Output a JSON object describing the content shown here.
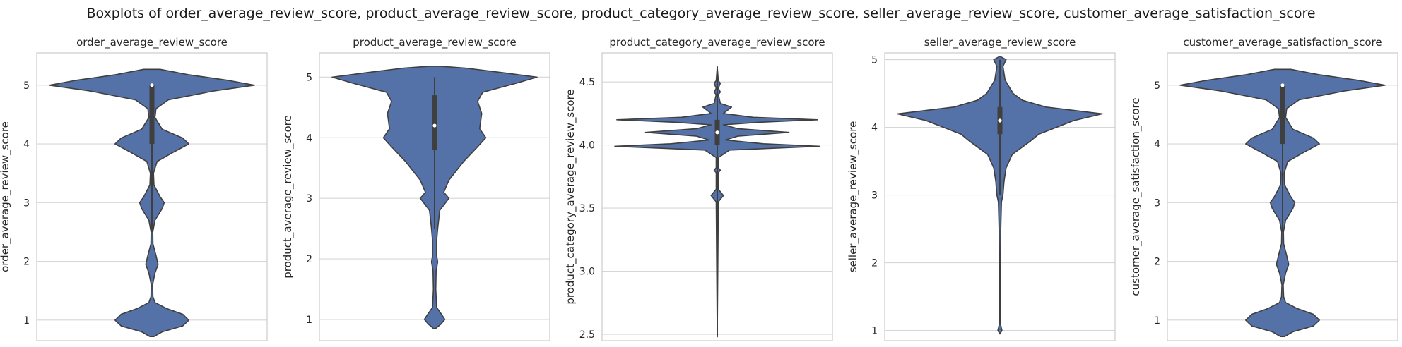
{
  "figure": {
    "title": "Boxplots of order_average_review_score, product_average_review_score, product_category_average_review_score, seller_average_review_score, customer_average_satisfaction_score"
  },
  "colors": {
    "violin_fill": "#5471a8",
    "outline": "#3f3f3f",
    "grid": "#d6d6d6",
    "frame": "#cccccc"
  },
  "chart_data": [
    {
      "type": "violin",
      "title": "order_average_review_score",
      "ylabel": "order_average_review_score",
      "ylim": [
        0.65,
        5.55
      ],
      "yticks": [
        1,
        2,
        3,
        4,
        5
      ],
      "ytick_labels": [
        "1",
        "2",
        "3",
        "4",
        "5"
      ],
      "grid": true,
      "box": {
        "q1": 4.0,
        "median": 5.0,
        "q3": 5.0,
        "whisker_low": 2.5,
        "whisker_high": 5.0
      },
      "density_profile": [
        [
          0.72,
          0.02
        ],
        [
          0.8,
          0.1
        ],
        [
          0.9,
          0.3
        ],
        [
          1.0,
          0.36
        ],
        [
          1.1,
          0.3
        ],
        [
          1.2,
          0.14
        ],
        [
          1.3,
          0.03
        ],
        [
          1.4,
          0.01
        ],
        [
          1.6,
          0.006
        ],
        [
          1.8,
          0.03
        ],
        [
          1.95,
          0.06
        ],
        [
          2.1,
          0.04
        ],
        [
          2.3,
          0.01
        ],
        [
          2.5,
          0.008
        ],
        [
          2.7,
          0.03
        ],
        [
          2.9,
          0.1
        ],
        [
          3.0,
          0.12
        ],
        [
          3.1,
          0.08
        ],
        [
          3.3,
          0.02
        ],
        [
          3.5,
          0.015
        ],
        [
          3.7,
          0.05
        ],
        [
          3.85,
          0.2
        ],
        [
          4.0,
          0.36
        ],
        [
          4.1,
          0.3
        ],
        [
          4.25,
          0.1
        ],
        [
          4.45,
          0.03
        ],
        [
          4.6,
          0.04
        ],
        [
          4.75,
          0.16
        ],
        [
          4.9,
          0.6
        ],
        [
          5.0,
          1.0
        ],
        [
          5.08,
          0.75
        ],
        [
          5.18,
          0.35
        ],
        [
          5.27,
          0.08
        ]
      ]
    },
    {
      "type": "violin",
      "title": "product_average_review_score",
      "ylabel": "product_average_review_score",
      "ylim": [
        0.65,
        5.4
      ],
      "yticks": [
        1,
        2,
        3,
        4,
        5
      ],
      "ytick_labels": [
        "1",
        "2",
        "3",
        "4",
        "5"
      ],
      "grid": true,
      "box": {
        "q1": 3.8,
        "median": 4.2,
        "q3": 4.7,
        "whisker_low": 2.5,
        "whisker_high": 5.0
      },
      "density_profile": [
        [
          0.85,
          0.01
        ],
        [
          0.92,
          0.06
        ],
        [
          1.0,
          0.1
        ],
        [
          1.08,
          0.07
        ],
        [
          1.2,
          0.02
        ],
        [
          1.5,
          0.012
        ],
        [
          1.8,
          0.015
        ],
        [
          1.95,
          0.03
        ],
        [
          2.05,
          0.02
        ],
        [
          2.3,
          0.02
        ],
        [
          2.5,
          0.03
        ],
        [
          2.8,
          0.05
        ],
        [
          3.0,
          0.14
        ],
        [
          3.1,
          0.09
        ],
        [
          3.3,
          0.14
        ],
        [
          3.6,
          0.28
        ],
        [
          3.85,
          0.42
        ],
        [
          4.0,
          0.5
        ],
        [
          4.15,
          0.44
        ],
        [
          4.4,
          0.46
        ],
        [
          4.6,
          0.42
        ],
        [
          4.75,
          0.47
        ],
        [
          4.9,
          0.8
        ],
        [
          5.0,
          1.0
        ],
        [
          5.07,
          0.68
        ],
        [
          5.15,
          0.3
        ],
        [
          5.18,
          0.05
        ]
      ]
    },
    {
      "type": "violin",
      "title": "product_category_average_review_score",
      "ylabel": "product_category_average_review_score",
      "ylim": [
        2.45,
        4.73
      ],
      "yticks": [
        2.5,
        3.0,
        3.5,
        4.0,
        4.5
      ],
      "ytick_labels": [
        "2.5",
        "3.0",
        "3.5",
        "4.0",
        "4.5"
      ],
      "grid": true,
      "box": {
        "q1": 4.0,
        "median": 4.1,
        "q3": 4.2,
        "whisker_low": 2.48,
        "whisker_high": 4.62
      },
      "density_profile": [
        [
          2.48,
          0.0
        ],
        [
          3.55,
          0.01
        ],
        [
          3.6,
          0.06
        ],
        [
          3.65,
          0.01
        ],
        [
          3.78,
          0.01
        ],
        [
          3.8,
          0.03
        ],
        [
          3.82,
          0.01
        ],
        [
          3.9,
          0.01
        ],
        [
          3.96,
          0.12
        ],
        [
          3.99,
          1.0
        ],
        [
          4.01,
          0.45
        ],
        [
          4.04,
          0.08
        ],
        [
          4.07,
          0.2
        ],
        [
          4.1,
          0.7
        ],
        [
          4.13,
          0.2
        ],
        [
          4.16,
          0.06
        ],
        [
          4.18,
          0.4
        ],
        [
          4.2,
          0.98
        ],
        [
          4.22,
          0.35
        ],
        [
          4.25,
          0.06
        ],
        [
          4.3,
          0.14
        ],
        [
          4.33,
          0.03
        ],
        [
          4.4,
          0.01
        ],
        [
          4.42,
          0.03
        ],
        [
          4.45,
          0.01
        ],
        [
          4.49,
          0.03
        ],
        [
          4.51,
          0.01
        ],
        [
          4.62,
          0.0
        ]
      ]
    },
    {
      "type": "violin",
      "title": "seller_average_review_score",
      "ylabel": "seller_average_review_score",
      "ylim": [
        0.85,
        5.1
      ],
      "yticks": [
        1,
        2,
        3,
        4,
        5
      ],
      "ytick_labels": [
        "1",
        "2",
        "3",
        "4",
        "5"
      ],
      "grid": true,
      "box": {
        "q1": 3.9,
        "median": 4.1,
        "q3": 4.3,
        "whisker_low": 3.0,
        "whisker_high": 5.0
      },
      "density_profile": [
        [
          0.95,
          0.0
        ],
        [
          1.0,
          0.02
        ],
        [
          1.1,
          0.005
        ],
        [
          2.0,
          0.005
        ],
        [
          2.5,
          0.008
        ],
        [
          2.7,
          0.012
        ],
        [
          2.9,
          0.015
        ],
        [
          3.0,
          0.03
        ],
        [
          3.2,
          0.04
        ],
        [
          3.4,
          0.06
        ],
        [
          3.6,
          0.12
        ],
        [
          3.8,
          0.3
        ],
        [
          3.9,
          0.38
        ],
        [
          4.0,
          0.55
        ],
        [
          4.1,
          0.72
        ],
        [
          4.2,
          1.0
        ],
        [
          4.3,
          0.45
        ],
        [
          4.4,
          0.22
        ],
        [
          4.5,
          0.13
        ],
        [
          4.6,
          0.09
        ],
        [
          4.7,
          0.05
        ],
        [
          4.8,
          0.04
        ],
        [
          4.9,
          0.03
        ],
        [
          5.0,
          0.06
        ],
        [
          5.05,
          0.0
        ]
      ]
    },
    {
      "type": "violin",
      "title": "customer_average_satisfaction_score",
      "ylabel": "customer_average_satisfaction_score",
      "ylim": [
        0.65,
        5.55
      ],
      "yticks": [
        1,
        2,
        3,
        4,
        5
      ],
      "ytick_labels": [
        "1",
        "2",
        "3",
        "4",
        "5"
      ],
      "grid": true,
      "box": {
        "q1": 4.0,
        "median": 5.0,
        "q3": 5.0,
        "whisker_low": 2.5,
        "whisker_high": 5.0
      },
      "density_profile": [
        [
          0.72,
          0.02
        ],
        [
          0.8,
          0.1
        ],
        [
          0.9,
          0.3
        ],
        [
          1.0,
          0.36
        ],
        [
          1.1,
          0.3
        ],
        [
          1.2,
          0.14
        ],
        [
          1.3,
          0.03
        ],
        [
          1.4,
          0.01
        ],
        [
          1.6,
          0.006
        ],
        [
          1.8,
          0.03
        ],
        [
          1.95,
          0.06
        ],
        [
          2.1,
          0.04
        ],
        [
          2.3,
          0.01
        ],
        [
          2.5,
          0.008
        ],
        [
          2.7,
          0.03
        ],
        [
          2.9,
          0.1
        ],
        [
          3.0,
          0.12
        ],
        [
          3.1,
          0.08
        ],
        [
          3.3,
          0.02
        ],
        [
          3.5,
          0.015
        ],
        [
          3.7,
          0.05
        ],
        [
          3.85,
          0.2
        ],
        [
          4.0,
          0.36
        ],
        [
          4.1,
          0.3
        ],
        [
          4.25,
          0.1
        ],
        [
          4.45,
          0.03
        ],
        [
          4.6,
          0.04
        ],
        [
          4.75,
          0.16
        ],
        [
          4.9,
          0.6
        ],
        [
          5.0,
          1.0
        ],
        [
          5.08,
          0.75
        ],
        [
          5.18,
          0.35
        ],
        [
          5.27,
          0.08
        ]
      ]
    }
  ]
}
